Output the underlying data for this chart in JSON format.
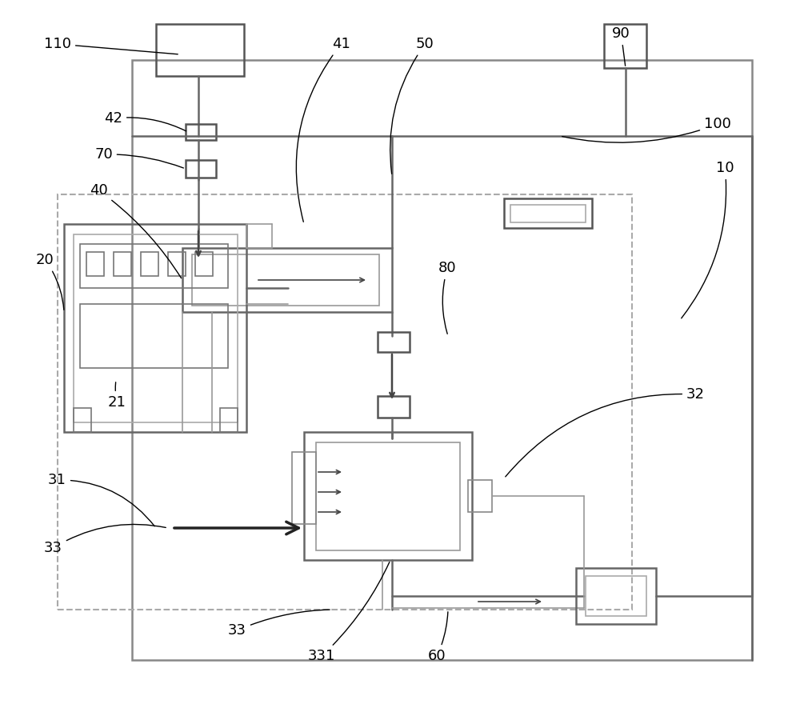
{
  "bg_color": "#ffffff",
  "lc": "#999999",
  "dc": "#555555",
  "figsize": [
    10.0,
    8.8
  ],
  "dpi": 100
}
